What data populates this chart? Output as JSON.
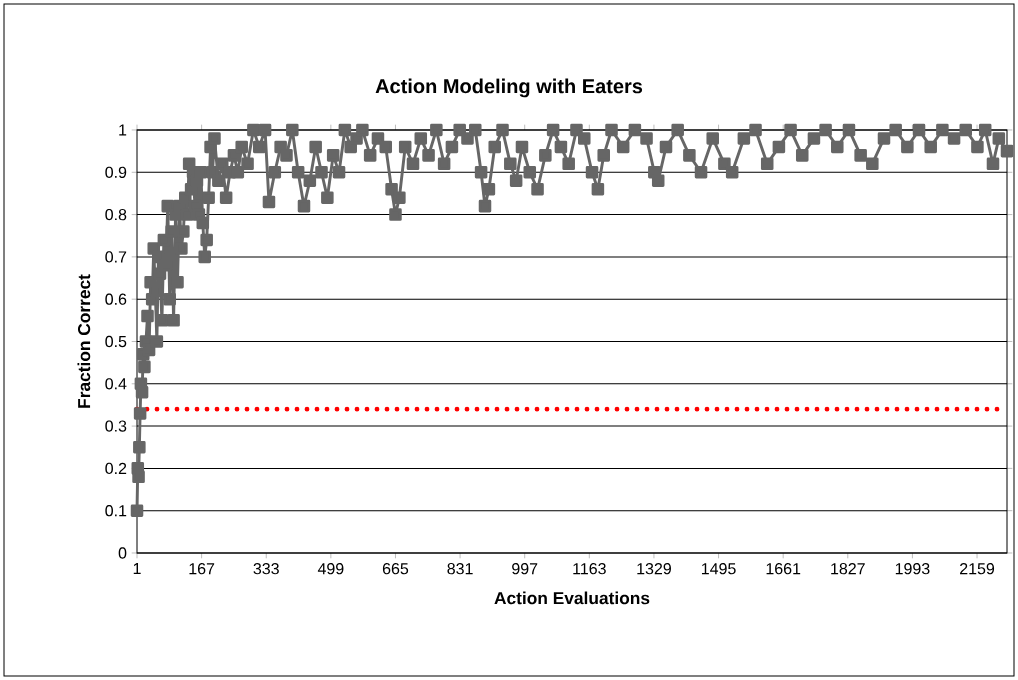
{
  "chart_data": {
    "type": "line",
    "title": "Action Modeling with Eaters",
    "xlabel": "Action Evaluations",
    "ylabel": "Fraction Correct",
    "xlim": [
      1,
      2236
    ],
    "xticks": [
      1,
      167,
      333,
      499,
      665,
      831,
      997,
      1163,
      1329,
      1495,
      1661,
      1827,
      1993,
      2159
    ],
    "ylim": [
      0,
      1
    ],
    "yticks": [
      0,
      0.1,
      0.2,
      0.3,
      0.4,
      0.5,
      0.6,
      0.7,
      0.8,
      0.9,
      1
    ],
    "grid": "y",
    "marker": "square",
    "line_style": "solid",
    "ref_lines": [
      {
        "axis": "y",
        "value": 0.34,
        "color": "#ff0000",
        "line_style": "dotted"
      }
    ],
    "series": [
      {
        "color": "#666666",
        "x": [
          1,
          3,
          5,
          7,
          9,
          11,
          14,
          17,
          20,
          24,
          28,
          32,
          36,
          40,
          44,
          48,
          52,
          56,
          60,
          65,
          70,
          75,
          80,
          85,
          90,
          95,
          100,
          105,
          110,
          115,
          120,
          125,
          130,
          135,
          140,
          145,
          150,
          155,
          160,
          165,
          170,
          175,
          180,
          185,
          190,
          195,
          200,
          210,
          220,
          230,
          240,
          250,
          260,
          270,
          285,
          300,
          315,
          330,
          340,
          355,
          370,
          385,
          400,
          415,
          430,
          445,
          460,
          475,
          490,
          505,
          520,
          535,
          550,
          565,
          580,
          600,
          620,
          640,
          655,
          665,
          675,
          690,
          710,
          730,
          750,
          770,
          790,
          810,
          830,
          850,
          870,
          885,
          895,
          905,
          920,
          940,
          960,
          975,
          990,
          1010,
          1030,
          1050,
          1070,
          1090,
          1110,
          1130,
          1150,
          1170,
          1185,
          1200,
          1220,
          1250,
          1280,
          1310,
          1330,
          1340,
          1360,
          1390,
          1420,
          1450,
          1480,
          1510,
          1530,
          1560,
          1590,
          1620,
          1650,
          1680,
          1710,
          1740,
          1770,
          1800,
          1830,
          1860,
          1890,
          1920,
          1950,
          1980,
          2010,
          2040,
          2070,
          2100,
          2130,
          2160,
          2180,
          2200,
          2215,
          2236
        ],
        "values": [
          0.1,
          0.2,
          0.18,
          0.25,
          0.33,
          0.4,
          0.38,
          0.47,
          0.44,
          0.5,
          0.56,
          0.48,
          0.64,
          0.6,
          0.72,
          0.62,
          0.5,
          0.7,
          0.66,
          0.55,
          0.74,
          0.68,
          0.82,
          0.6,
          0.76,
          0.55,
          0.8,
          0.64,
          0.82,
          0.72,
          0.76,
          0.84,
          0.8,
          0.92,
          0.86,
          0.9,
          0.82,
          0.88,
          0.8,
          0.9,
          0.78,
          0.7,
          0.74,
          0.84,
          0.96,
          0.9,
          0.98,
          0.88,
          0.92,
          0.84,
          0.9,
          0.94,
          0.9,
          0.96,
          0.92,
          1,
          0.96,
          1,
          0.83,
          0.9,
          0.96,
          0.94,
          1,
          0.9,
          0.82,
          0.88,
          0.96,
          0.9,
          0.84,
          0.94,
          0.9,
          1,
          0.96,
          0.98,
          1,
          0.94,
          0.98,
          0.96,
          0.86,
          0.8,
          0.84,
          0.96,
          0.92,
          0.98,
          0.94,
          1,
          0.92,
          0.96,
          1,
          0.98,
          1,
          0.9,
          0.82,
          0.86,
          0.96,
          1,
          0.92,
          0.88,
          0.96,
          0.9,
          0.86,
          0.94,
          1,
          0.96,
          0.92,
          1,
          0.98,
          0.9,
          0.86,
          0.94,
          1,
          0.96,
          1,
          0.98,
          0.9,
          0.88,
          0.96,
          1,
          0.94,
          0.9,
          0.98,
          0.92,
          0.9,
          0.98,
          1,
          0.92,
          0.96,
          1,
          0.94,
          0.98,
          1,
          0.96,
          1,
          0.94,
          0.92,
          0.98,
          1,
          0.96,
          1,
          0.96,
          1,
          0.98,
          1,
          0.96,
          1,
          0.92,
          0.98,
          0.95
        ]
      }
    ]
  }
}
